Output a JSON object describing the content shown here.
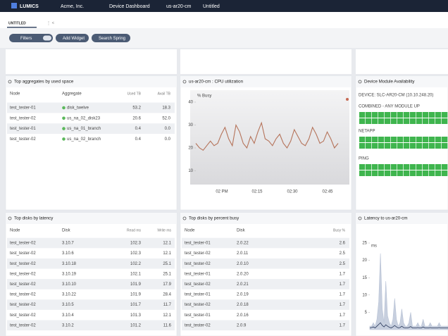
{
  "topbar": {
    "logo": "LUMICS",
    "org": "Acme, Inc.",
    "dashboard": "Device Dashboard",
    "device": "us-ar20-cm",
    "view": "Untitled"
  },
  "tab": {
    "label": "UNTITLED"
  },
  "toolbar": {
    "buttons": [
      "Filters",
      "Add Widget",
      "Search Spring"
    ]
  },
  "aggregates": {
    "title": "Top aggregates by used space",
    "columns": [
      "Node",
      "Aggregate",
      "Used TB",
      "Avail TB"
    ],
    "rows": [
      [
        "test_tester-01",
        "disk_twelve",
        "53.2",
        "18.3"
      ],
      [
        "test_tester-02",
        "us_na_02_disk23",
        "20.6",
        "52.0"
      ],
      [
        "test_tester-01",
        "us_na_01_branch",
        "0.4",
        "0.0"
      ],
      [
        "test_tester-02",
        "us_na_02_branch",
        "0.4",
        "0.0"
      ]
    ]
  },
  "availability": {
    "title": "Device Module Availability",
    "device": "DEVICE: SLC-AR20-CM (10.10.248.20)",
    "groups": [
      "COMBINED - ANY MODULE UP",
      "NETAPP",
      "PING"
    ]
  },
  "latency_table": {
    "title": "Top disks by latency",
    "columns": [
      "Node",
      "Disk",
      "Read ms",
      "Write ms"
    ],
    "rows": [
      [
        "test_tester-02",
        "3.10.7",
        "102.3",
        "12.1"
      ],
      [
        "test_tester-02",
        "3.10.6",
        "102.3",
        "12.1"
      ],
      [
        "test_tester-02",
        "3.10.18",
        "102.2",
        "25.1"
      ],
      [
        "test_tester-02",
        "3.10.19",
        "102.1",
        "25.1"
      ],
      [
        "test_tester-02",
        "3.10.10",
        "101.9",
        "17.9"
      ],
      [
        "test_tester-02",
        "3.10.22",
        "101.9",
        "28.4"
      ],
      [
        "test_tester-02",
        "3.10.5",
        "101.7",
        "11.7"
      ],
      [
        "test_tester-02",
        "3.10.4",
        "101.3",
        "12.1"
      ],
      [
        "test_tester-02",
        "3.10.2",
        "101.2",
        "11.6"
      ]
    ]
  },
  "busy_table": {
    "title": "Top disks by percent busy",
    "columns": [
      "Node",
      "Disk",
      "Busy %"
    ],
    "rows": [
      [
        "test_tester-01",
        "2.0.22",
        "2.6"
      ],
      [
        "test_tester-02",
        "2.0.11",
        "2.5"
      ],
      [
        "test_tester-02",
        "2.0.10",
        "2.5"
      ],
      [
        "test_tester-01",
        "2.0.20",
        "1.7"
      ],
      [
        "test_tester-02",
        "2.0.21",
        "1.7"
      ],
      [
        "test_tester-01",
        "2.0.19",
        "1.7"
      ],
      [
        "test_tester-02",
        "2.0.18",
        "1.7"
      ],
      [
        "test_tester-01",
        "2.0.16",
        "1.7"
      ],
      [
        "test_tester-02",
        "2.0.9",
        "1.7"
      ]
    ]
  },
  "chart_data": [
    {
      "type": "line",
      "title": "us-ar20-cm : CPU utilization",
      "ylabel": "% Busy",
      "ylim": [
        4,
        44
      ],
      "yticks": [
        10,
        20,
        30,
        40
      ],
      "xtick_labels": [
        "02 PM",
        "02:15",
        "02:30",
        "02:45"
      ],
      "series": [
        {
          "color": "#b5735a",
          "values": [
            22,
            20,
            19,
            21,
            23,
            21,
            22,
            26,
            29,
            24,
            21,
            30,
            27,
            22,
            20,
            25,
            22,
            27,
            31,
            24,
            23,
            21,
            24,
            26,
            22,
            20,
            23,
            28,
            25,
            22,
            21,
            24,
            29,
            26,
            22,
            23,
            27,
            24,
            20,
            22
          ]
        }
      ]
    },
    {
      "type": "area",
      "title": "Latency to us-ar20-cm",
      "ylabel": "ms",
      "ylim": [
        0,
        25
      ],
      "yticks": [
        5,
        10,
        15,
        20,
        25
      ],
      "series": [
        {
          "color": "#b9c3d6",
          "values": [
            1,
            1,
            2,
            1,
            3,
            8,
            22,
            6,
            2,
            14,
            4,
            2,
            1,
            3,
            9,
            3,
            1,
            2,
            6,
            2,
            1,
            1,
            2,
            5,
            1,
            1,
            1,
            2,
            1,
            1,
            3,
            1,
            1,
            1,
            2,
            1,
            1,
            1,
            1,
            2,
            1,
            1,
            1,
            1,
            1
          ]
        },
        {
          "color": "#27365a",
          "values": [
            0.5,
            0.6,
            0.8,
            0.5,
            1,
            1.5,
            2,
            1.2,
            0.8,
            1.4,
            1,
            0.7,
            0.5,
            0.8,
            1.2,
            0.8,
            0.5,
            0.6,
            1,
            0.6,
            0.5,
            0.5,
            0.6,
            0.9,
            0.5,
            0.5,
            0.5,
            0.6,
            0.5,
            0.5,
            0.8,
            0.5,
            0.5,
            0.5,
            0.6,
            0.5,
            0.5,
            0.5,
            0.5,
            0.6,
            0.5,
            0.5,
            0.5,
            0.5,
            0.5
          ]
        }
      ]
    }
  ]
}
